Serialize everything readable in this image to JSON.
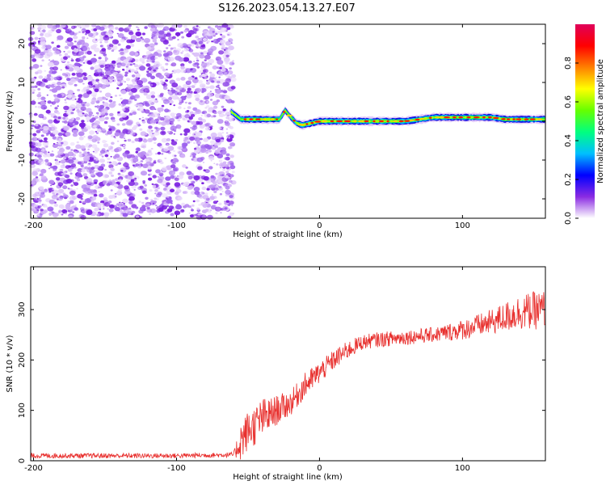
{
  "title": "S126.2023.054.13.27.E07",
  "colors": {
    "snr_line": "#e8302e",
    "noise_dots": "#7a1fe0",
    "background": "#ffffff",
    "colormap": [
      "#ffffff",
      "#8a2be2",
      "#0000ff",
      "#00bfff",
      "#00ff80",
      "#66ff00",
      "#ffff00",
      "#ff8000",
      "#ff0000",
      "#e0005a"
    ]
  },
  "chart_data": [
    {
      "type": "heatmap",
      "xlabel": "Height of straight line (km)",
      "ylabel": "Frequency (Hz)",
      "xlim": [
        -202,
        158
      ],
      "ylim": [
        -25,
        25
      ],
      "x_ticks": [
        -200,
        -100,
        0,
        100
      ],
      "y_ticks": [
        -20,
        -10,
        0,
        10,
        20
      ],
      "noise_region_x": [
        -202,
        -60
      ],
      "signal_track": {
        "x": [
          -62,
          -55,
          -45,
          -35,
          -28,
          -24,
          -20,
          -16,
          -12,
          -6,
          0,
          10,
          20,
          30,
          40,
          50,
          60,
          70,
          80,
          90,
          100,
          110,
          120,
          130,
          140,
          150,
          158
        ],
        "freq": [
          2.5,
          0.5,
          0.5,
          0.5,
          0.5,
          2.8,
          1.0,
          -0.5,
          -1.0,
          -0.5,
          0.0,
          0.0,
          0.0,
          0.0,
          0.0,
          0.0,
          0.0,
          0.5,
          1.0,
          1.0,
          1.0,
          1.0,
          1.0,
          0.5,
          0.5,
          0.5,
          0.5
        ]
      },
      "colorbar": {
        "label": "Normalized spectral amplitude",
        "range": [
          0,
          1
        ],
        "ticks": [
          0.0,
          0.2,
          0.4,
          0.6,
          0.8
        ],
        "tick_labels": [
          "0.0",
          "0.2",
          "0.4",
          "0.6",
          "0.8"
        ]
      }
    },
    {
      "type": "line",
      "xlabel": "Height of straight line (km)",
      "ylabel": "SNR (10 * v/v)",
      "xlim": [
        -202,
        158
      ],
      "ylim": [
        0,
        385
      ],
      "x_ticks": [
        -200,
        -100,
        0,
        100
      ],
      "y_ticks": [
        0,
        100,
        200,
        300
      ],
      "series": [
        {
          "x": [
            -202,
            -150,
            -100,
            -60,
            -55,
            -50,
            -45,
            -40,
            -35,
            -30,
            -20,
            -10,
            0,
            10,
            20,
            30,
            40,
            60,
            80,
            100,
            120,
            140,
            158
          ],
          "mean": [
            10,
            10,
            10,
            12,
            40,
            60,
            70,
            85,
            90,
            100,
            115,
            150,
            175,
            200,
            220,
            235,
            240,
            245,
            250,
            260,
            275,
            295,
            300
          ],
          "noise": [
            5,
            5,
            5,
            5,
            40,
            40,
            40,
            40,
            35,
            30,
            25,
            25,
            22,
            20,
            18,
            15,
            15,
            15,
            15,
            20,
            25,
            35,
            40
          ]
        }
      ]
    }
  ]
}
